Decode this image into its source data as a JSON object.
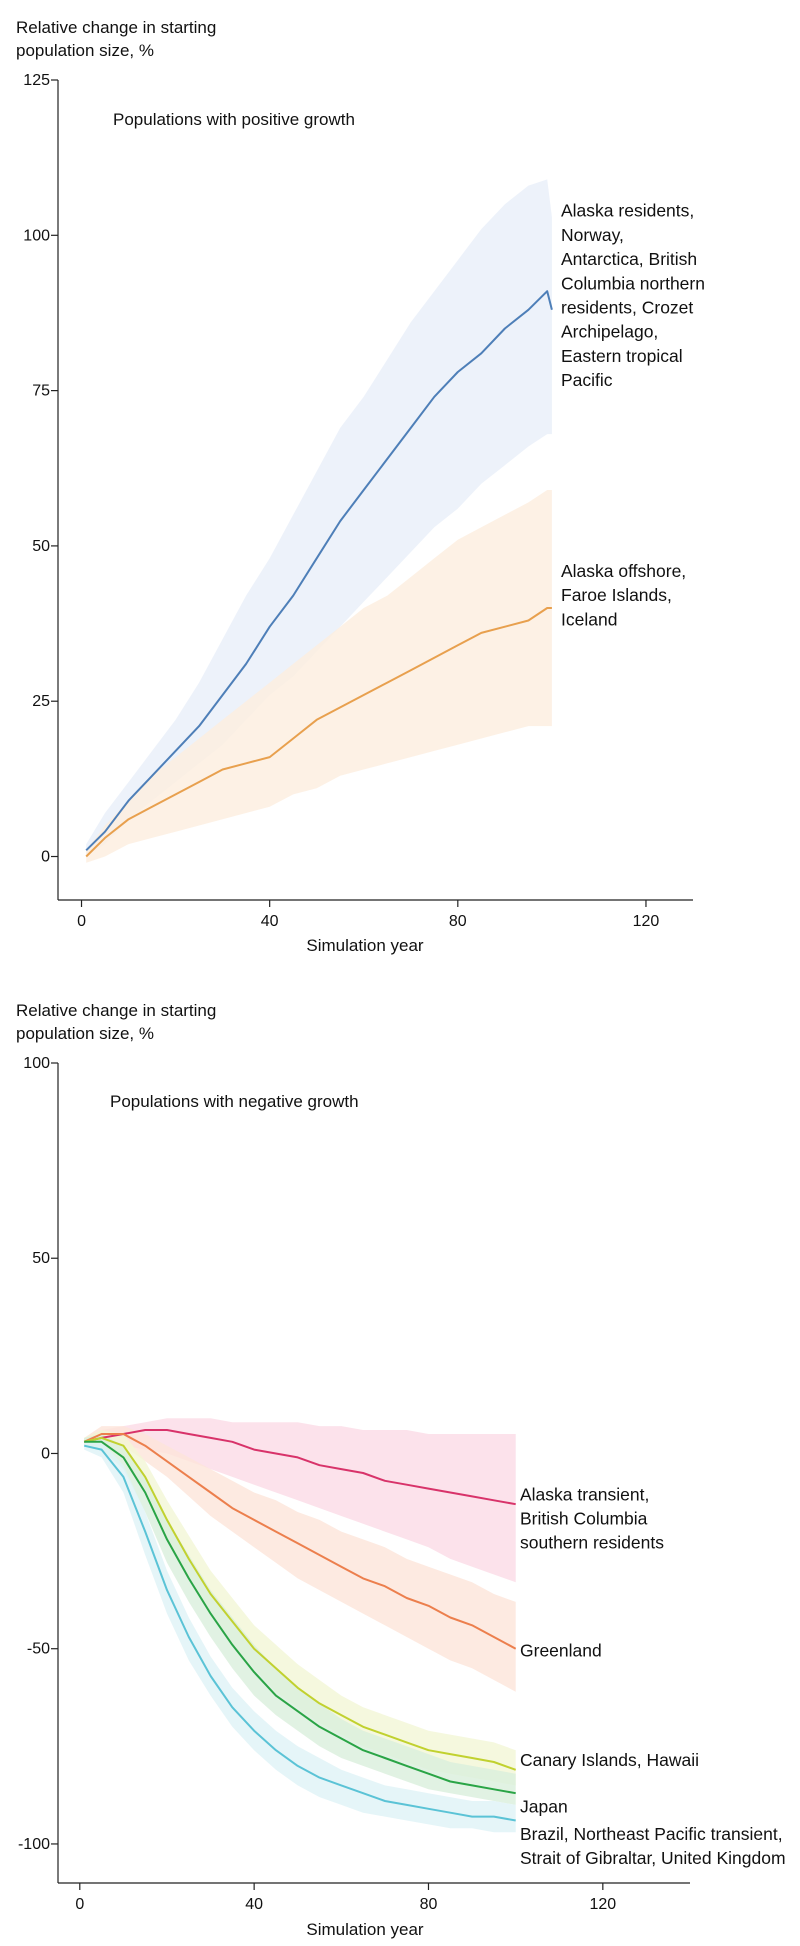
{
  "chart_data": [
    {
      "type": "line",
      "title": "Populations with positive growth",
      "ylabel_lines": [
        "Relative change in starting",
        "population size, %"
      ],
      "xlabel": "Simulation year",
      "xlim": [
        -5,
        130
      ],
      "ylim": [
        -7,
        125
      ],
      "xticks": [
        0,
        40,
        80,
        120
      ],
      "yticks": [
        0,
        25,
        50,
        75,
        100,
        125
      ],
      "series": [
        {
          "name": "Alaska residents, Norway, Antarctica, British Columbia northern residents, Crozet Archipelago, Eastern tropical Pacific",
          "label_lines": [
            "Alaska residents,",
            "Norway,",
            "Antarctica, British",
            "Columbia northern",
            "residents, Crozet",
            "Archipelago,",
            "Eastern tropical",
            "Pacific"
          ],
          "label_y": 103,
          "color": "#4e7fb8",
          "band_color": "#e8eff9",
          "x": [
            1,
            5,
            10,
            15,
            20,
            25,
            30,
            35,
            40,
            45,
            50,
            55,
            60,
            65,
            70,
            75,
            80,
            85,
            90,
            95,
            99,
            100
          ],
          "y": [
            1,
            4,
            9,
            13,
            17,
            21,
            26,
            31,
            37,
            42,
            48,
            54,
            59,
            64,
            69,
            74,
            78,
            81,
            85,
            88,
            91,
            88
          ],
          "lower": [
            0,
            2,
            6,
            9,
            12,
            15,
            18,
            22,
            26,
            29,
            33,
            37,
            41,
            45,
            49,
            53,
            56,
            60,
            63,
            66,
            68,
            68
          ],
          "upper": [
            2,
            7,
            12,
            17,
            22,
            28,
            35,
            42,
            48,
            55,
            62,
            69,
            74,
            80,
            86,
            91,
            96,
            101,
            105,
            108,
            109,
            103
          ]
        },
        {
          "name": "Alaska offshore, Faroe Islands, Iceland",
          "label_lines": [
            "Alaska offshore,",
            "Faroe Islands,",
            "Iceland"
          ],
          "label_y": 45,
          "color": "#e8a04e",
          "band_color": "#fdeedf",
          "x": [
            1,
            5,
            10,
            15,
            20,
            25,
            30,
            35,
            40,
            45,
            50,
            55,
            60,
            65,
            70,
            75,
            80,
            85,
            90,
            95,
            99,
            100
          ],
          "y": [
            0,
            3,
            6,
            8,
            10,
            12,
            14,
            15,
            16,
            19,
            22,
            24,
            26,
            28,
            30,
            32,
            34,
            36,
            37,
            38,
            40,
            40
          ],
          "lower": [
            -1,
            0,
            2,
            3,
            4,
            5,
            6,
            7,
            8,
            10,
            11,
            13,
            14,
            15,
            16,
            17,
            18,
            19,
            20,
            21,
            21,
            21
          ],
          "upper": [
            1,
            5,
            9,
            13,
            16,
            19,
            22,
            25,
            28,
            31,
            34,
            37,
            40,
            42,
            45,
            48,
            51,
            53,
            55,
            57,
            59,
            59
          ]
        }
      ]
    },
    {
      "type": "line",
      "title": "Populations with negative growth",
      "ylabel_lines": [
        "Relative change in starting",
        "population size, %"
      ],
      "xlabel": "Simulation year",
      "xlim": [
        -5,
        140
      ],
      "ylim": [
        -110,
        100
      ],
      "xticks": [
        0,
        40,
        80,
        120
      ],
      "yticks": [
        -100,
        -50,
        0,
        50,
        100
      ],
      "series": [
        {
          "name": "Alaska transient, British Columbia southern residents",
          "label_lines": [
            "Alaska transient,",
            "British Columbia",
            "southern residents"
          ],
          "label_y": -12,
          "color": "#d8336a",
          "band_color": "#fbdbe6",
          "x": [
            1,
            5,
            10,
            15,
            20,
            25,
            30,
            35,
            40,
            45,
            50,
            55,
            60,
            65,
            70,
            75,
            80,
            85,
            90,
            95,
            100
          ],
          "y": [
            3,
            4,
            5,
            6,
            6,
            5,
            4,
            3,
            1,
            0,
            -1,
            -3,
            -4,
            -5,
            -7,
            -8,
            -9,
            -10,
            -11,
            -12,
            -13
          ],
          "lower": [
            2,
            2,
            2,
            1,
            0,
            -2,
            -4,
            -6,
            -8,
            -10,
            -12,
            -14,
            -16,
            -18,
            -20,
            -22,
            -24,
            -27,
            -29,
            -31,
            -33
          ],
          "upper": [
            4,
            6,
            7,
            8,
            9,
            9,
            9,
            8,
            8,
            8,
            8,
            7,
            7,
            6,
            6,
            6,
            5,
            5,
            5,
            5,
            5
          ]
        },
        {
          "name": "Greenland",
          "label_lines": [
            "Greenland"
          ],
          "label_y": -52,
          "color": "#ec7f4d",
          "band_color": "#fde5d9",
          "x": [
            1,
            5,
            10,
            15,
            20,
            25,
            30,
            35,
            40,
            45,
            50,
            55,
            60,
            65,
            70,
            75,
            80,
            85,
            90,
            95,
            100
          ],
          "y": [
            3,
            5,
            5,
            2,
            -2,
            -6,
            -10,
            -14,
            -17,
            -20,
            -23,
            -26,
            -29,
            -32,
            -34,
            -37,
            -39,
            -42,
            -44,
            -47,
            -50
          ],
          "lower": [
            2,
            3,
            2,
            -2,
            -6,
            -11,
            -16,
            -20,
            -24,
            -28,
            -32,
            -35,
            -38,
            -41,
            -44,
            -47,
            -50,
            -53,
            -55,
            -58,
            -61
          ],
          "upper": [
            4,
            7,
            7,
            5,
            2,
            -1,
            -4,
            -7,
            -10,
            -12,
            -15,
            -17,
            -20,
            -22,
            -24,
            -27,
            -29,
            -31,
            -33,
            -36,
            -38
          ]
        },
        {
          "name": "Canary Islands, Hawaii",
          "label_lines": [
            "Canary Islands, Hawaii"
          ],
          "label_y": -80,
          "color": "#c1d12f",
          "band_color": "#f3f6d6",
          "x": [
            1,
            5,
            10,
            15,
            20,
            25,
            30,
            35,
            40,
            45,
            50,
            55,
            60,
            65,
            70,
            75,
            80,
            85,
            90,
            95,
            100
          ],
          "y": [
            3,
            4,
            2,
            -6,
            -17,
            -27,
            -36,
            -43,
            -50,
            -55,
            -60,
            -64,
            -67,
            -70,
            -72,
            -74,
            -76,
            -77,
            -78,
            -79,
            -81
          ],
          "lower": [
            2,
            2,
            -1,
            -10,
            -22,
            -32,
            -41,
            -49,
            -55,
            -61,
            -65,
            -69,
            -72,
            -75,
            -77,
            -79,
            -81,
            -82,
            -83,
            -84,
            -85
          ],
          "upper": [
            4,
            6,
            5,
            -2,
            -12,
            -21,
            -30,
            -37,
            -44,
            -49,
            -54,
            -58,
            -62,
            -65,
            -67,
            -69,
            -71,
            -72,
            -73,
            -74,
            -76
          ]
        },
        {
          "name": "Japan",
          "label_lines": [
            "Japan"
          ],
          "label_y": -92,
          "color": "#2aa446",
          "band_color": "#d9efdc",
          "x": [
            1,
            5,
            10,
            15,
            20,
            25,
            30,
            35,
            40,
            45,
            50,
            55,
            60,
            65,
            70,
            75,
            80,
            85,
            90,
            95,
            100
          ],
          "y": [
            3,
            3,
            -1,
            -10,
            -22,
            -32,
            -41,
            -49,
            -56,
            -62,
            -66,
            -70,
            -73,
            -76,
            -78,
            -80,
            -82,
            -84,
            -85,
            -86,
            -87
          ],
          "lower": [
            2,
            1,
            -4,
            -15,
            -28,
            -38,
            -47,
            -55,
            -62,
            -67,
            -71,
            -75,
            -78,
            -80,
            -82,
            -84,
            -86,
            -87,
            -88,
            -89,
            -90
          ],
          "upper": [
            4,
            5,
            2,
            -6,
            -17,
            -26,
            -35,
            -42,
            -49,
            -55,
            -60,
            -64,
            -68,
            -71,
            -73,
            -75,
            -77,
            -79,
            -80,
            -81,
            -82
          ]
        },
        {
          "name": "Brazil, Northeast Pacific transient, Strait of Gibraltar, United Kingdom",
          "label_lines": [
            "Brazil, Northeast Pacific transient,",
            "Strait of Gibraltar, United Kingdom"
          ],
          "label_y": -99,
          "color": "#5bc3d6",
          "band_color": "#dff3f6",
          "x": [
            1,
            5,
            10,
            15,
            20,
            25,
            30,
            35,
            40,
            45,
            50,
            55,
            60,
            65,
            70,
            75,
            80,
            85,
            90,
            95,
            100
          ],
          "y": [
            2,
            1,
            -6,
            -20,
            -35,
            -47,
            -57,
            -65,
            -71,
            -76,
            -80,
            -83,
            -85,
            -87,
            -89,
            -90,
            -91,
            -92,
            -93,
            -93,
            -94
          ],
          "lower": [
            1,
            -1,
            -10,
            -26,
            -41,
            -53,
            -62,
            -70,
            -76,
            -81,
            -85,
            -88,
            -90,
            -92,
            -93,
            -94,
            -95,
            -96,
            -96,
            -97,
            -97
          ],
          "upper": [
            3,
            3,
            -3,
            -15,
            -30,
            -42,
            -52,
            -60,
            -66,
            -71,
            -75,
            -78,
            -81,
            -83,
            -85,
            -86,
            -87,
            -88,
            -89,
            -89,
            -90
          ]
        }
      ]
    }
  ]
}
